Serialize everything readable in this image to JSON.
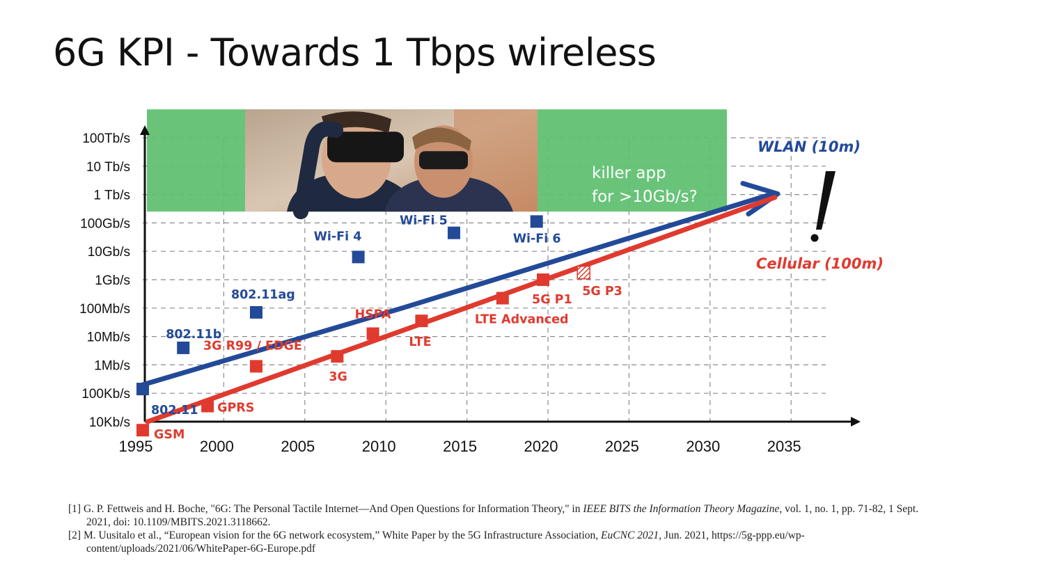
{
  "slide": {
    "title": "6G KPI - Towards 1 Tbps wireless"
  },
  "chart_data": {
    "type": "line",
    "title": "",
    "xlabel": "",
    "ylabel": "",
    "x_ticks": [
      "1995",
      "2000",
      "2005",
      "2010",
      "2015",
      "2020",
      "2025",
      "2030",
      "2035"
    ],
    "xlim": [
      1995,
      2036
    ],
    "y_scale": "log",
    "y_ticks": [
      "10Kb/s",
      "100Kb/s",
      "1Mb/s",
      "10Mb/s",
      "100Mb/s",
      "1Gb/s",
      "10Gb/s",
      "100Gb/s",
      "1 Tb/s",
      "10 Tb/s",
      "100Tb/s"
    ],
    "grid": true,
    "series": [
      {
        "name": "WLAN (10m)",
        "color": "#234a98",
        "trend": {
          "start": [
            1995,
            1.3
          ],
          "knee": [
            2011,
            4.0
          ],
          "end": [
            2034,
            8.05
          ]
        },
        "points": [
          {
            "label": "802.11",
            "x": 1995,
            "y": 1.15
          },
          {
            "label": "802.11b",
            "x": 1997.5,
            "y": 2.6
          },
          {
            "label": "802.11ag",
            "x": 2002,
            "y": 3.85
          },
          {
            "label": "Wi-Fi 4",
            "x": 2008.3,
            "y": 5.8
          },
          {
            "label": "Wi-Fi 5",
            "x": 2014.2,
            "y": 6.65
          },
          {
            "label": "Wi-Fi 6",
            "x": 2019.3,
            "y": 7.05
          }
        ]
      },
      {
        "name": "Cellular (100m)",
        "color": "#e03a2f",
        "trend": {
          "start": [
            1995.3,
            0.0
          ],
          "end": [
            2034,
            7.9
          ]
        },
        "points": [
          {
            "label": "GSM",
            "x": 1995,
            "y": -0.3
          },
          {
            "label": "GPRS",
            "x": 1999,
            "y": 0.55
          },
          {
            "label": "3G R99 / EDGE",
            "x": 2002,
            "y": 1.95
          },
          {
            "label": "3G",
            "x": 2007,
            "y": 2.3
          },
          {
            "label": "HSPA",
            "x": 2009.2,
            "y": 3.1
          },
          {
            "label": "LTE",
            "x": 2012.2,
            "y": 3.55
          },
          {
            "label": "LTE Advanced",
            "x": 2017.2,
            "y": 4.35
          },
          {
            "label": "5G P1",
            "x": 2019.7,
            "y": 5.0
          },
          {
            "label": "5G P3",
            "x": 2022.2,
            "y": 5.25,
            "hatched": true
          }
        ]
      }
    ],
    "annotations": {
      "wlan_label": "WLAN (10m)",
      "cellular_label": "Cellular (100m)",
      "exclamation": "!",
      "killer_app": [
        "killer app",
        "for >10Gb/s?"
      ],
      "highlight_range_y": [
        7.4,
        11.0
      ],
      "highlight_range_x": [
        1995,
        2031
      ]
    }
  },
  "references": [
    {
      "number": "[1]",
      "text_before": "G. P. Fettweis and H. Boche, \"6G: The Personal Tactile Internet—And Open Questions for Information Theory,\" in ",
      "italic": "IEEE BITS the Information Theory Magazine",
      "text_after": ", vol. 1, no. 1, pp. 71-82, 1 Sept. 2021, doi: 10.1109/MBITS.2021.3118662."
    },
    {
      "number": "[2]",
      "text_before": "M. Uusitalo et al., “European vision for the 6G network ecosystem,” White Paper by the 5G Infrastructure Association, ",
      "italic": "EuCNC 2021",
      "text_after": ", Jun. 2021, https://5g-ppp.eu/wp-content/uploads/2021/06/WhitePaper-6G-Europe.pdf"
    }
  ]
}
